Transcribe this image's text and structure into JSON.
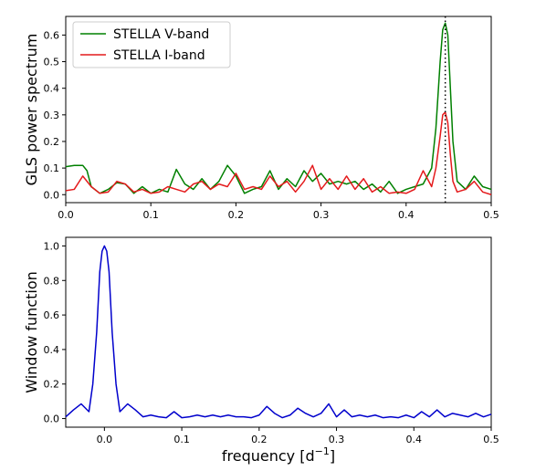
{
  "chart_data": [
    {
      "type": "line",
      "title": "",
      "xlabel": "",
      "ylabel": "GLS power spectrum",
      "xlim": [
        0.0,
        0.5
      ],
      "ylim": [
        -0.03,
        0.67
      ],
      "xticks": [
        "0.0",
        "0.1",
        "0.2",
        "0.3",
        "0.4",
        "0.5"
      ],
      "yticks": [
        "0.0",
        "0.1",
        "0.2",
        "0.3",
        "0.4",
        "0.5",
        "0.6"
      ],
      "grid": false,
      "legend": "upper-left",
      "annotation_line": {
        "x": 0.446,
        "style": "dotted",
        "color": "#000000"
      },
      "series": [
        {
          "name": "STELLA V-band",
          "color": "#008000",
          "x": [
            0.0,
            0.01,
            0.02,
            0.025,
            0.03,
            0.04,
            0.05,
            0.06,
            0.07,
            0.08,
            0.09,
            0.1,
            0.11,
            0.12,
            0.13,
            0.14,
            0.15,
            0.16,
            0.17,
            0.18,
            0.19,
            0.2,
            0.21,
            0.22,
            0.23,
            0.24,
            0.25,
            0.26,
            0.27,
            0.28,
            0.29,
            0.3,
            0.31,
            0.32,
            0.33,
            0.34,
            0.35,
            0.36,
            0.37,
            0.38,
            0.39,
            0.4,
            0.41,
            0.42,
            0.43,
            0.435,
            0.44,
            0.443,
            0.446,
            0.449,
            0.452,
            0.455,
            0.46,
            0.47,
            0.48,
            0.49,
            0.5
          ],
          "values": [
            0.105,
            0.11,
            0.11,
            0.09,
            0.03,
            0.005,
            0.02,
            0.045,
            0.04,
            0.005,
            0.03,
            0.005,
            0.02,
            0.01,
            0.095,
            0.04,
            0.02,
            0.06,
            0.02,
            0.05,
            0.11,
            0.07,
            0.005,
            0.02,
            0.03,
            0.09,
            0.02,
            0.06,
            0.03,
            0.09,
            0.05,
            0.08,
            0.04,
            0.05,
            0.04,
            0.05,
            0.02,
            0.04,
            0.01,
            0.05,
            0.005,
            0.02,
            0.03,
            0.04,
            0.1,
            0.25,
            0.5,
            0.62,
            0.645,
            0.6,
            0.4,
            0.2,
            0.05,
            0.02,
            0.07,
            0.03,
            0.02
          ]
        },
        {
          "name": "STELLA I-band",
          "color": "#e41a1c",
          "x": [
            0.0,
            0.01,
            0.02,
            0.03,
            0.04,
            0.05,
            0.06,
            0.07,
            0.08,
            0.09,
            0.1,
            0.11,
            0.12,
            0.13,
            0.14,
            0.15,
            0.16,
            0.17,
            0.18,
            0.19,
            0.2,
            0.21,
            0.22,
            0.23,
            0.24,
            0.25,
            0.26,
            0.27,
            0.28,
            0.29,
            0.3,
            0.31,
            0.32,
            0.33,
            0.34,
            0.35,
            0.36,
            0.37,
            0.38,
            0.39,
            0.4,
            0.41,
            0.42,
            0.43,
            0.435,
            0.44,
            0.443,
            0.446,
            0.449,
            0.452,
            0.455,
            0.46,
            0.47,
            0.48,
            0.49,
            0.5
          ],
          "values": [
            0.015,
            0.02,
            0.07,
            0.03,
            0.005,
            0.01,
            0.05,
            0.04,
            0.01,
            0.02,
            0.005,
            0.01,
            0.03,
            0.02,
            0.01,
            0.04,
            0.05,
            0.02,
            0.04,
            0.03,
            0.08,
            0.02,
            0.03,
            0.02,
            0.07,
            0.03,
            0.05,
            0.01,
            0.05,
            0.11,
            0.02,
            0.06,
            0.02,
            0.07,
            0.02,
            0.06,
            0.01,
            0.03,
            0.005,
            0.01,
            0.005,
            0.02,
            0.09,
            0.03,
            0.1,
            0.22,
            0.3,
            0.31,
            0.27,
            0.15,
            0.05,
            0.01,
            0.02,
            0.05,
            0.01,
            0.0
          ]
        }
      ]
    },
    {
      "type": "line",
      "title": "",
      "xlabel": "frequency [d$^{-1}$]",
      "xlabel_base": "frequency [d",
      "xlabel_sup": "−1",
      "xlabel_end": "]",
      "ylabel": "Window function",
      "xlim": [
        -0.05,
        0.5
      ],
      "ylim": [
        -0.05,
        1.05
      ],
      "xticks": [
        "0.0",
        "0.1",
        "0.2",
        "0.3",
        "0.4",
        "0.5"
      ],
      "yticks": [
        "0.0",
        "0.2",
        "0.4",
        "0.6",
        "0.8",
        "1.0"
      ],
      "grid": false,
      "legend": "none",
      "series": [
        {
          "color": "#0000cc",
          "x": [
            -0.05,
            -0.04,
            -0.03,
            -0.02,
            -0.015,
            -0.01,
            -0.006,
            -0.003,
            0.0,
            0.003,
            0.006,
            0.01,
            0.015,
            0.02,
            0.03,
            0.04,
            0.05,
            0.06,
            0.07,
            0.08,
            0.09,
            0.1,
            0.11,
            0.12,
            0.13,
            0.14,
            0.15,
            0.16,
            0.17,
            0.18,
            0.19,
            0.2,
            0.21,
            0.22,
            0.23,
            0.24,
            0.25,
            0.26,
            0.27,
            0.28,
            0.29,
            0.3,
            0.31,
            0.32,
            0.33,
            0.34,
            0.35,
            0.36,
            0.37,
            0.38,
            0.39,
            0.4,
            0.41,
            0.42,
            0.43,
            0.44,
            0.45,
            0.46,
            0.47,
            0.48,
            0.49,
            0.5
          ],
          "values": [
            0.01,
            0.05,
            0.085,
            0.04,
            0.2,
            0.5,
            0.85,
            0.97,
            1.0,
            0.97,
            0.85,
            0.5,
            0.2,
            0.04,
            0.085,
            0.05,
            0.01,
            0.02,
            0.01,
            0.005,
            0.04,
            0.005,
            0.01,
            0.02,
            0.01,
            0.02,
            0.01,
            0.02,
            0.01,
            0.01,
            0.005,
            0.02,
            0.07,
            0.03,
            0.005,
            0.02,
            0.06,
            0.03,
            0.01,
            0.03,
            0.085,
            0.01,
            0.05,
            0.01,
            0.02,
            0.01,
            0.02,
            0.005,
            0.01,
            0.005,
            0.02,
            0.005,
            0.04,
            0.01,
            0.05,
            0.01,
            0.03,
            0.02,
            0.01,
            0.03,
            0.01,
            0.025
          ]
        }
      ]
    }
  ]
}
